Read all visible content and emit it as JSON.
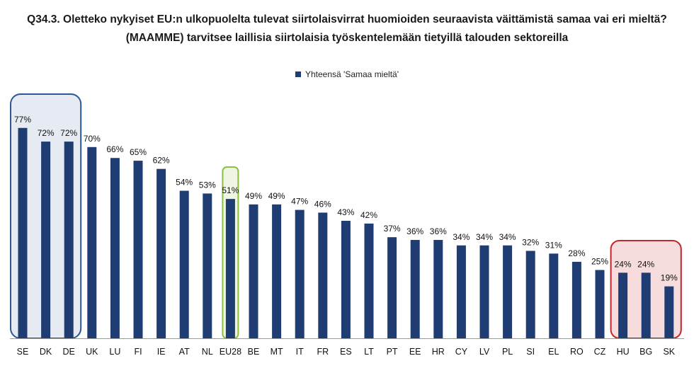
{
  "title_line1": "Q34.3. Oletteko nykyiset EU:n ulkopuolelta tulevat siirtolaisvirrat huomioiden seuraavista väittämistä samaa vai eri mieltä?",
  "title_line2": "(MAAMME) tarvitsee laillisia siirtolaisia työskentelemään tietyillä talouden sektoreilla",
  "colors": {
    "bar": "#1f3d73",
    "high_box_fill": "#e6eaf3",
    "high_box_stroke": "#2e5694",
    "eu_box_stroke": "#8cbf3f",
    "eu_box_fill": "#eef5e2",
    "low_box_fill": "#f6dcdc",
    "low_box_stroke": "#c0272d"
  },
  "chart_data": {
    "type": "bar",
    "legend": "Yhteensä 'Samaa mieltä'",
    "legend_position": "top-center",
    "categories": [
      "SE",
      "DK",
      "DE",
      "UK",
      "LU",
      "FI",
      "IE",
      "AT",
      "NL",
      "EU28",
      "BE",
      "MT",
      "IT",
      "FR",
      "ES",
      "LT",
      "PT",
      "EE",
      "HR",
      "CY",
      "LV",
      "PL",
      "SI",
      "EL",
      "RO",
      "CZ",
      "HU",
      "BG",
      "SK"
    ],
    "series": [
      {
        "name": "Yhteensä 'Samaa mieltä'",
        "values": [
          77,
          72,
          72,
          70,
          66,
          65,
          62,
          54,
          53,
          51,
          49,
          49,
          47,
          46,
          43,
          42,
          37,
          36,
          36,
          34,
          34,
          34,
          32,
          31,
          28,
          25,
          24,
          24,
          19
        ]
      }
    ],
    "value_labels": [
      "77%",
      "72%",
      "72%",
      "70%",
      "66%",
      "65%",
      "62%",
      "54%",
      "53%",
      "51%",
      "49%",
      "49%",
      "47%",
      "46%",
      "43%",
      "42%",
      "37%",
      "36%",
      "36%",
      "34%",
      "34%",
      "34%",
      "32%",
      "31%",
      "28%",
      "25%",
      "24%",
      "24%",
      "19%"
    ],
    "highlight_groups": [
      {
        "group": "high",
        "categories": [
          "SE",
          "DK",
          "DE"
        ]
      },
      {
        "group": "eu",
        "categories": [
          "EU28"
        ]
      },
      {
        "group": "low",
        "categories": [
          "HU",
          "BG",
          "SK"
        ]
      }
    ],
    "ylim": [
      0,
      100
    ],
    "grid": false
  }
}
